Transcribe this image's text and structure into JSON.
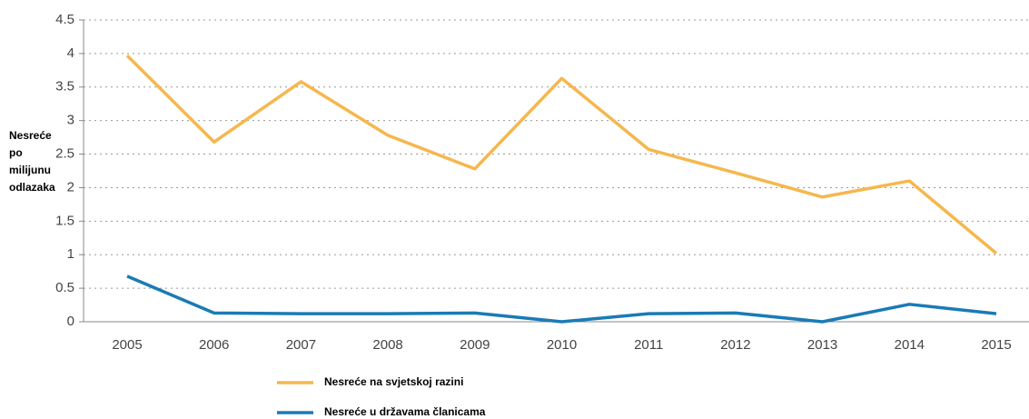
{
  "chart_data": {
    "type": "line",
    "ylabel": "Nesreće po milijunu odlazaka",
    "categories": [
      "2005",
      "2006",
      "2007",
      "2008",
      "2009",
      "2010",
      "2011",
      "2012",
      "2013",
      "2014",
      "2015"
    ],
    "series": [
      {
        "name": "Nesreće na svjetskoj razini",
        "color": "#f5b74e",
        "values": [
          3.97,
          2.68,
          3.58,
          2.78,
          2.28,
          3.63,
          2.57,
          2.22,
          1.86,
          2.1,
          1.02
        ]
      },
      {
        "name": "Nesreće u državama članicama",
        "color": "#1a7bb5",
        "values": [
          0.68,
          0.13,
          0.12,
          0.12,
          0.13,
          0,
          0.12,
          0.13,
          0,
          0.26,
          0.12
        ]
      }
    ],
    "ylim": [
      0,
      4.5
    ],
    "yticks": [
      0,
      0.5,
      1,
      1.5,
      2,
      2.5,
      3,
      3.5,
      4,
      4.5
    ],
    "grid": true
  }
}
